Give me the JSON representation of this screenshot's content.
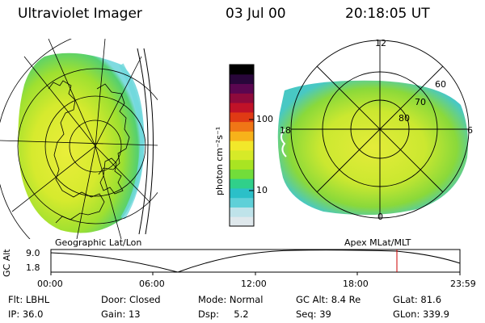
{
  "header": {
    "instrument": "Ultraviolet Imager",
    "date": "03 Jul 00",
    "time": "20:18:05 UT"
  },
  "colorbar": {
    "unit_label": "photon cm⁻²s⁻¹",
    "ticks": [
      "100",
      "10"
    ],
    "colors": [
      "#dfe8ec",
      "#bfe3ea",
      "#5fd0d8",
      "#2bc0c8",
      "#30d08a",
      "#72dd3a",
      "#a9e422",
      "#d6ea28",
      "#f2e82a",
      "#f7b21a",
      "#f07616",
      "#e03a14",
      "#c01228",
      "#8e0a3c",
      "#5a0650",
      "#28063a",
      "#000000"
    ]
  },
  "left_map": {
    "label": "Geographic Lat/Lon"
  },
  "right_map": {
    "label": "Apex MLat/MLT",
    "mlt_labels": {
      "top": "12",
      "left": "18",
      "right": "6",
      "bottom": "0"
    },
    "lat_labels": [
      "60",
      "70",
      "80"
    ]
  },
  "orbit_plot": {
    "axis_label": "GC Alt",
    "y_ticks": [
      "9.0",
      "1.8"
    ],
    "x_ticks": [
      "00:00",
      "06:00",
      "12:00",
      "18:00",
      "23:59"
    ],
    "marker_color": "#cc0000"
  },
  "info": {
    "row1": [
      "Flt: LBHL",
      "Door: Closed",
      "Mode: Normal",
      "GC Alt: 8.4 Re",
      "GLat: 81.6"
    ],
    "row2": [
      "IP: 36.0",
      "Gain: 13",
      "Dsp:     5.2",
      "Seq: 39",
      "GLon: 339.9"
    ]
  }
}
